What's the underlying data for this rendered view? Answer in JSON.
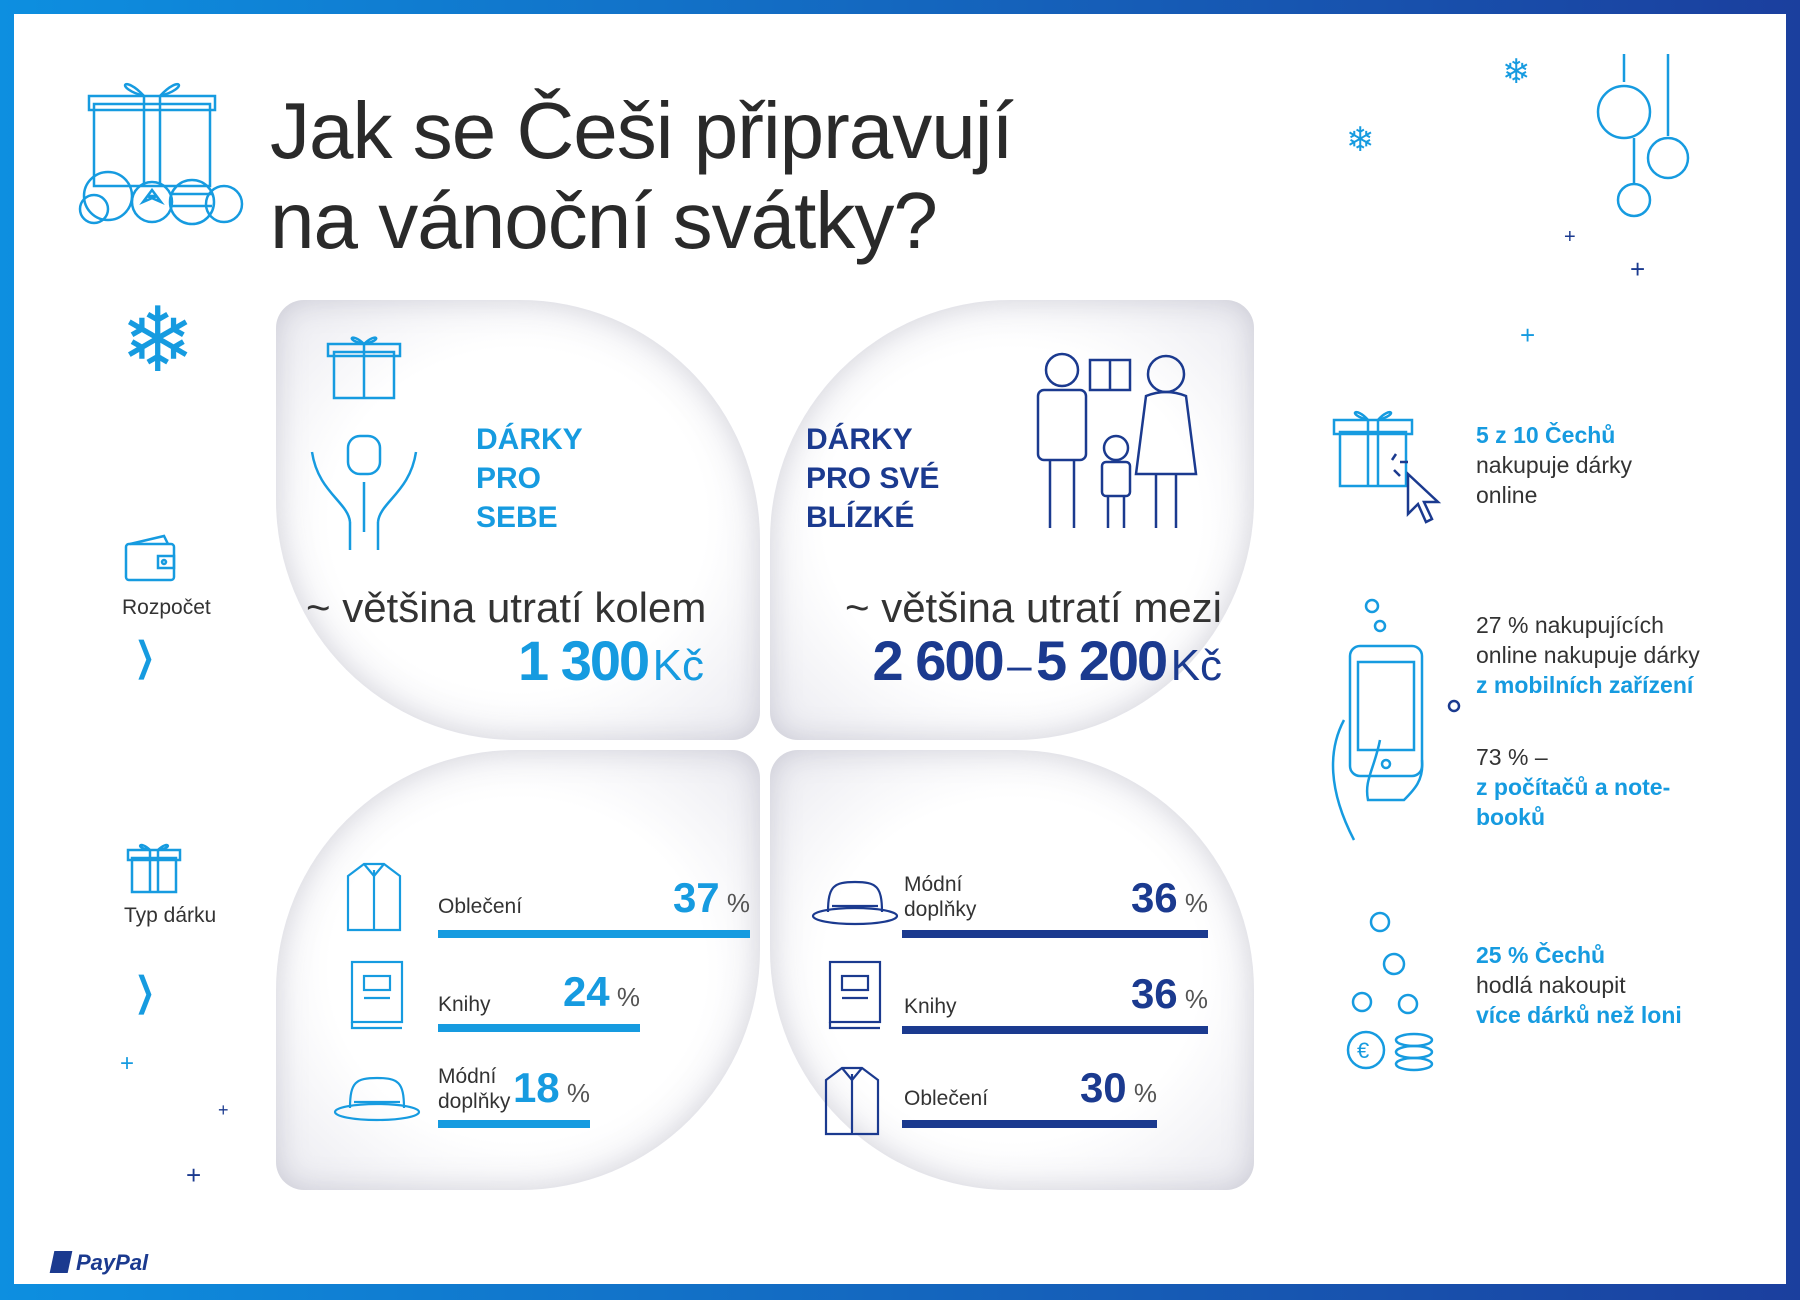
{
  "title": {
    "line1": "Jak se Češi připravují",
    "line2": "na vánoční svátky?"
  },
  "brand": {
    "name": "PayPal",
    "navy": "#1b3a8f",
    "cyan": "#169be0"
  },
  "side": {
    "budget_label": "Rozpočet",
    "gift_type_label": "Typ dárku"
  },
  "self_gifts": {
    "heading": [
      "DÁRKY",
      "PRO",
      "SEBE"
    ],
    "spend_text": "~ většina utratí kolem",
    "amount": "1 300",
    "currency": "Kč"
  },
  "loved_gifts": {
    "heading": [
      "DÁRKY",
      "PRO SVÉ",
      "BLÍZKÉ"
    ],
    "spend_text": "~ většina utratí mezi",
    "amount_from": "2 600",
    "dash": "–",
    "amount_to": "5 200",
    "currency": "Kč"
  },
  "percent_sign": "%",
  "chart_data": [
    {
      "type": "bar",
      "categories": [
        "Oblečení",
        "Knihy",
        "Módní doplňky"
      ],
      "values": [
        37,
        24,
        18
      ],
      "xlim": [
        0,
        37
      ]
    },
    {
      "type": "bar",
      "categories": [
        "Módní doplňky",
        "Knihy",
        "Oblečení"
      ],
      "values": [
        36,
        36,
        30
      ],
      "xlim": [
        0,
        36
      ]
    }
  ],
  "labels": {
    "left": [
      "Oblečení",
      "Knihy",
      "Módní\ndoplňky"
    ],
    "right": [
      "Módní\ndoplňky",
      "Knihy",
      "Oblečení"
    ]
  },
  "right_panel": {
    "online": {
      "strong": "5 z 10 Čechů",
      "rest1": "nakupuje dárky",
      "rest2": "online"
    },
    "mobile": {
      "l1": "27 % nakupujících",
      "l2": "online nakupuje dárky",
      "l3": "z mobilních zařízení"
    },
    "pc": {
      "l1": "73 % –",
      "l2": "z počítačů a note-",
      "l3": "booků"
    },
    "more": {
      "l1": "25 % Čechů",
      "l2": "hodlá nakoupit",
      "l3": "více dárků než loni"
    }
  }
}
